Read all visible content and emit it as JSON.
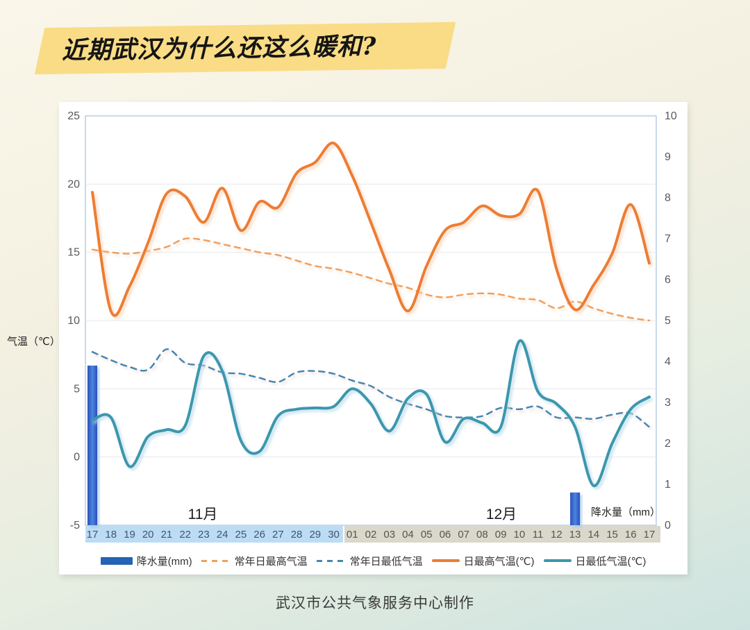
{
  "title": "近期武汉为什么还这么暖和?",
  "footer": "武汉市公共气象服务中心制作",
  "chart_data": {
    "type": "line",
    "x_labels": [
      "17",
      "18",
      "19",
      "20",
      "21",
      "22",
      "23",
      "24",
      "25",
      "26",
      "27",
      "28",
      "29",
      "30",
      "01",
      "02",
      "03",
      "04",
      "05",
      "06",
      "07",
      "08",
      "09",
      "10",
      "11",
      "12",
      "13",
      "14",
      "15",
      "16",
      "17"
    ],
    "november_days": 14,
    "month_row": {
      "november": "11月",
      "december": "12月"
    },
    "left_axis": {
      "title": "气温（℃）",
      "min": -5,
      "max": 25,
      "step": 5,
      "ticks": [
        25,
        20,
        15,
        10,
        5,
        0,
        -5
      ]
    },
    "right_axis": {
      "title": "降水量（mm）",
      "min": 0,
      "max": 10,
      "step": 1,
      "ticks": [
        10,
        9,
        8,
        7,
        6,
        5,
        4,
        3,
        2,
        1,
        0
      ]
    },
    "band_colors": {
      "november": "#BCDCF5",
      "december": "#DAD7CB"
    },
    "band_text_colors": {
      "november": "#42536B",
      "december": "#57544A"
    },
    "grid_color": "#E8E8E8",
    "plot_border_color": "#A9C7E3",
    "series": [
      {
        "name": "降水量(mm)",
        "type": "bar",
        "axis": "right",
        "color": "#2463B5",
        "gradient": [
          "#2A4EC2",
          "#4A85DB"
        ],
        "shadow": "#AECBE8",
        "values": [
          3.9,
          0,
          0,
          0,
          0,
          0,
          0,
          0,
          0,
          0,
          0,
          0,
          0,
          0,
          0,
          0,
          0,
          0,
          0,
          0,
          0,
          0,
          0,
          0,
          0,
          0,
          0.8,
          0,
          0,
          0,
          0
        ]
      },
      {
        "name": "常年日最高气温",
        "type": "line",
        "style": "dashed",
        "axis": "left",
        "color": "#EFA05E",
        "shadow": "#F6E2D0",
        "width": 2.5,
        "values": [
          15.2,
          15.0,
          14.9,
          15.1,
          15.4,
          16.0,
          15.9,
          15.6,
          15.3,
          15.0,
          14.8,
          14.4,
          14.0,
          13.8,
          13.5,
          13.1,
          12.7,
          12.4,
          11.9,
          11.7,
          11.9,
          12.0,
          11.9,
          11.6,
          11.5,
          10.9,
          11.4,
          10.9,
          10.5,
          10.2,
          10.0
        ]
      },
      {
        "name": "常年日最低气温",
        "type": "line",
        "style": "dashed",
        "axis": "left",
        "color": "#4586B0",
        "shadow": "#EAD8D4",
        "width": 2.5,
        "values": [
          7.7,
          7.1,
          6.6,
          6.4,
          7.9,
          6.9,
          6.7,
          6.2,
          6.1,
          5.8,
          5.5,
          6.2,
          6.3,
          6.1,
          5.6,
          5.2,
          4.4,
          3.9,
          3.5,
          3.0,
          2.9,
          3.0,
          3.6,
          3.5,
          3.7,
          2.9,
          2.9,
          2.8,
          3.1,
          3.2,
          2.2
        ]
      },
      {
        "name": "日最高气温(℃)",
        "type": "line",
        "style": "solid",
        "axis": "left",
        "color": "#ED7D31",
        "shadow": "#F4D7BF",
        "width": 4,
        "values": [
          19.4,
          10.7,
          12.5,
          15.7,
          19.3,
          19.1,
          17.2,
          19.7,
          16.6,
          18.7,
          18.3,
          20.8,
          21.6,
          23.0,
          20.6,
          17.2,
          13.7,
          10.7,
          14.0,
          16.6,
          17.2,
          18.4,
          17.7,
          17.8,
          19.5,
          13.8,
          10.8,
          12.6,
          14.9,
          18.5,
          14.2
        ]
      },
      {
        "name": "日最低气温(℃)",
        "type": "line",
        "style": "solid",
        "axis": "left",
        "color": "#3B97AD",
        "shadow": "#BBD9E9",
        "width": 4,
        "values": [
          2.7,
          2.9,
          -0.7,
          1.5,
          2.0,
          2.3,
          7.4,
          6.3,
          1.2,
          0.4,
          3.0,
          3.5,
          3.6,
          3.7,
          5.0,
          3.9,
          1.9,
          4.3,
          4.6,
          1.1,
          2.8,
          2.5,
          2.2,
          8.5,
          4.8,
          3.9,
          2.2,
          -2.1,
          1.0,
          3.5,
          4.4
        ]
      }
    ]
  },
  "legend": {
    "items": [
      {
        "label": "降水量(mm)"
      },
      {
        "label": "常年日最高气温"
      },
      {
        "label": "常年日最低气温"
      },
      {
        "label": "日最高气温(℃)"
      },
      {
        "label": "日最低气温(℃)"
      }
    ]
  }
}
